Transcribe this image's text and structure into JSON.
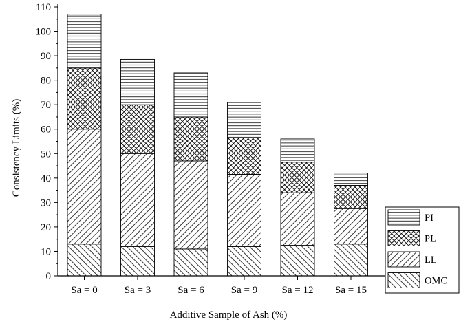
{
  "chart_data": {
    "type": "bar",
    "stacked": true,
    "title": "",
    "xlabel": "Additive Sample of Ash (%)",
    "ylabel": "Consistency Limits (%)",
    "ylim": [
      0,
      110
    ],
    "yticks": [
      0,
      10,
      20,
      30,
      40,
      50,
      60,
      70,
      80,
      90,
      100,
      110
    ],
    "categories": [
      "Sa = 0",
      "Sa = 3",
      "Sa = 6",
      "Sa = 9",
      "Sa = 12",
      "Sa = 15"
    ],
    "series": [
      {
        "name": "OMC",
        "pattern": "forward-diagonal",
        "values": [
          13,
          12,
          11,
          12,
          12.5,
          13
        ]
      },
      {
        "name": "LL",
        "pattern": "back-diagonal",
        "values": [
          47,
          38,
          36,
          29.5,
          21.5,
          14.5
        ]
      },
      {
        "name": "PL",
        "pattern": "crosshatch",
        "values": [
          25,
          20,
          18,
          15,
          12.5,
          9.5
        ]
      },
      {
        "name": "PI",
        "pattern": "horizontal",
        "values": [
          22,
          18.5,
          18,
          14.5,
          9.5,
          5
        ]
      }
    ],
    "legend_order": [
      "PI",
      "PL",
      "LL",
      "OMC"
    ],
    "legend_position": "right",
    "grid": false
  }
}
